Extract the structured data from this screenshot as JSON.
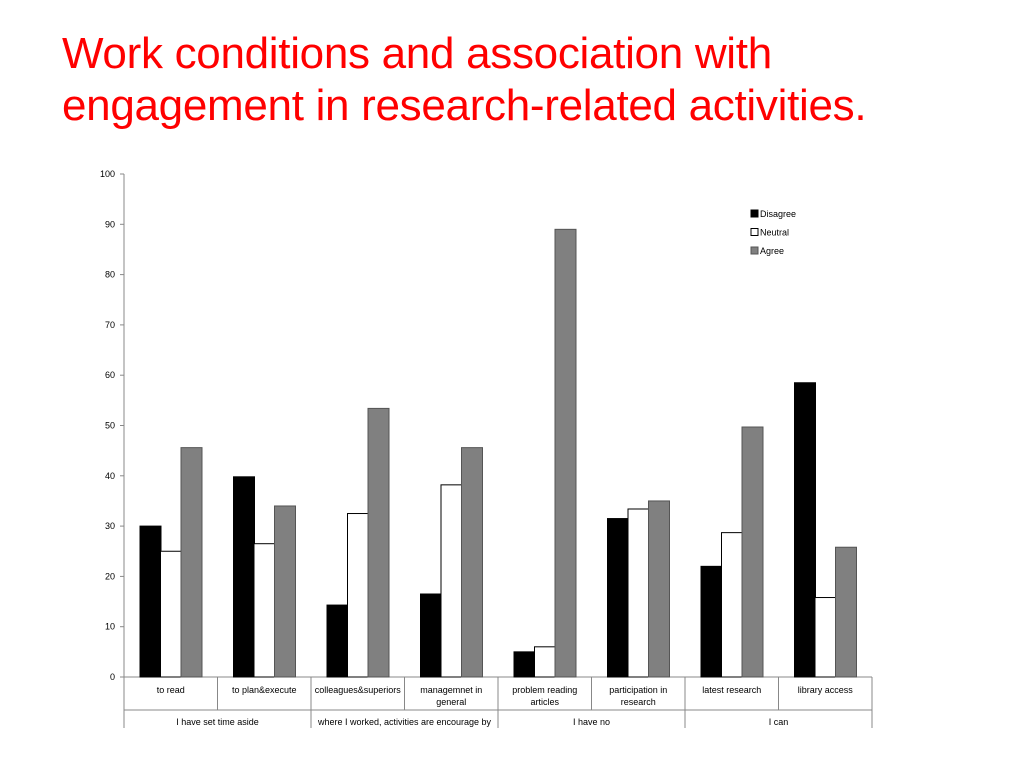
{
  "title": {
    "line1": "Work conditions and association with",
    "line2": "engagement in research-related activities."
  },
  "chart_data": {
    "type": "bar",
    "ylim": [
      0,
      100
    ],
    "yticks": [
      0,
      10,
      20,
      30,
      40,
      50,
      60,
      70,
      80,
      90,
      100
    ],
    "grid": false,
    "legend_position": "top-right",
    "categories": [
      [
        "to read"
      ],
      [
        "to plan&execute"
      ],
      [
        "colleagues&superiors"
      ],
      [
        "managemnet in",
        "general"
      ],
      [
        "problem reading",
        "articles"
      ],
      [
        "participation in",
        "research"
      ],
      [
        "latest research"
      ],
      [
        "library access"
      ]
    ],
    "groups": [
      {
        "label": "I have set time aside",
        "span": 2
      },
      {
        "label": "where I worked, activities are encourage by",
        "span": 2
      },
      {
        "label": "I have no",
        "span": 2
      },
      {
        "label": "I can",
        "span": 2
      }
    ],
    "series": [
      {
        "name": "Disagree",
        "fill": "#000000",
        "stroke": "#000000",
        "values": [
          30,
          39.8,
          14.3,
          16.5,
          5,
          31.5,
          22,
          58.5
        ]
      },
      {
        "name": "Neutral",
        "fill": "#ffffff",
        "stroke": "#000000",
        "values": [
          25,
          26.5,
          32.5,
          38.2,
          6,
          33.4,
          28.7,
          15.8
        ]
      },
      {
        "name": "Agree",
        "fill": "#808080",
        "stroke": "#555555",
        "values": [
          45.6,
          34,
          53.4,
          45.6,
          89,
          35,
          49.7,
          25.8
        ]
      }
    ]
  }
}
